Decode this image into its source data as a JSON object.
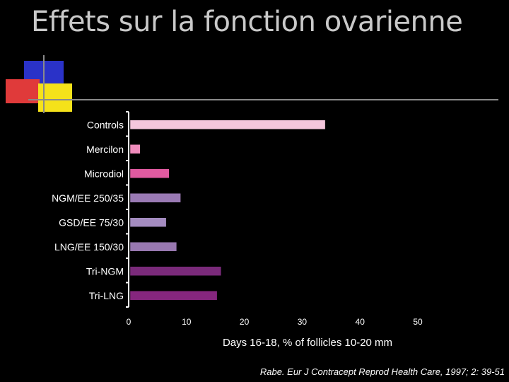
{
  "slide": {
    "title": "Effets sur la fonction ovarienne",
    "citation": "Rabe. Eur J Contracept Reprod Health Care, 1997; 2: 39-51"
  },
  "colors": {
    "background": "#000000",
    "deco_blue": "#2a32c8",
    "deco_red": "#e03a3a",
    "deco_yellow": "#f5e21a"
  },
  "chart_data": {
    "type": "bar",
    "orientation": "horizontal",
    "categories": [
      "Controls",
      "Mercilon",
      "Microdiol",
      "NGM/EE 250/35",
      "GSD/EE 75/30",
      "LNG/EE 150/30",
      "Tri-NGM",
      "Tri-LNG"
    ],
    "values": [
      34,
      2,
      7,
      9,
      6.5,
      8.3,
      16,
      15.3
    ],
    "bar_colors": [
      "#f4c6dc",
      "#f08cbc",
      "#e05aa0",
      "#9a7ab4",
      "#a48cc0",
      "#9878b0",
      "#7a2a7a",
      "#86267e"
    ],
    "xlabel": "Days 16-18, % of follicles 10-20 mm",
    "ylabel": "",
    "xlim": [
      0,
      50
    ],
    "xticks": [
      0,
      10,
      20,
      30,
      40,
      50
    ],
    "grid": false
  }
}
